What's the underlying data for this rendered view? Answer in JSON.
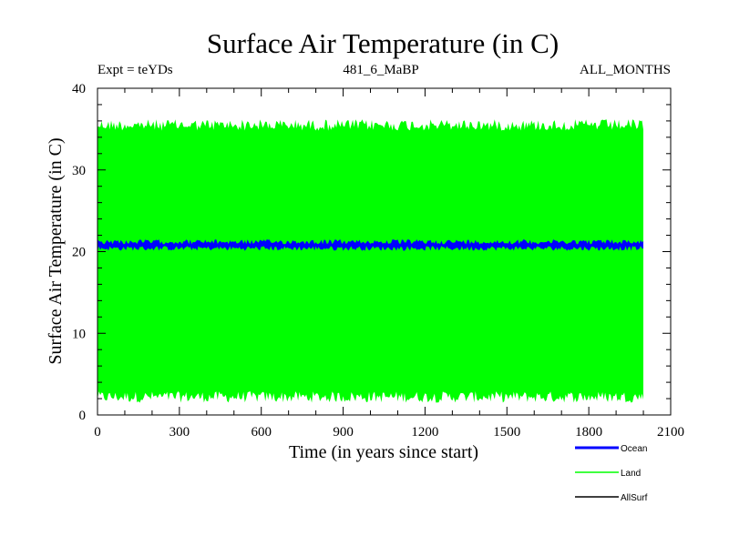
{
  "chart_data": {
    "type": "area",
    "title": "Surface Air Temperature (in C)",
    "subtitle_left": "Expt = teYDs",
    "subtitle_center": "481_6_MaBP",
    "subtitle_right": "ALL_MONTHS",
    "xlabel": "Time (in years since start)",
    "ylabel": "Surface Air Temperature (in C)",
    "xlim": [
      0,
      2100
    ],
    "ylim": [
      0,
      40
    ],
    "xticks": [
      0,
      300,
      600,
      900,
      1200,
      1500,
      1800,
      2100
    ],
    "yticks": [
      0,
      10,
      20,
      30,
      40
    ],
    "x_range_data": [
      0,
      2000
    ],
    "series": [
      {
        "name": "Ocean",
        "color": "#0000ff",
        "kind": "band",
        "min": 20.1,
        "max": 21.5
      },
      {
        "name": "Land",
        "color": "#00ff00",
        "kind": "band",
        "min": 1.5,
        "max": 36.2
      },
      {
        "name": "AllSurf",
        "color": "#000000",
        "kind": "line",
        "value": null
      }
    ],
    "legend_position": "bottom-right"
  }
}
